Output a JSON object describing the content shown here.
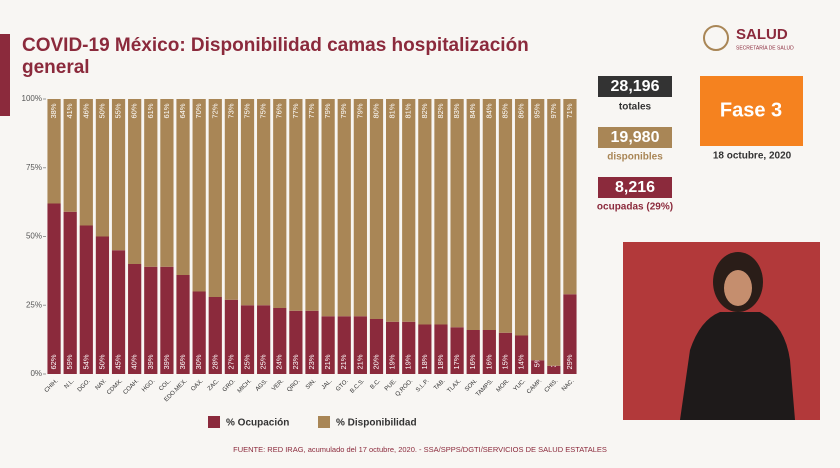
{
  "header": {
    "logo": "SALUD",
    "logo_sub": "SECRETARÍA DE SALUD"
  },
  "chart_data": {
    "type": "stacked_bar",
    "title": "COVID-19 México: Disponibilidad camas hospitalización general",
    "categories": [
      "CHIH.",
      "N.L.",
      "DGO.",
      "NAY.",
      "CDMX.",
      "COAH.",
      "HGO.",
      "COL.",
      "EDO.MEX.",
      "OAX.",
      "ZAC.",
      "GRO.",
      "MICH.",
      "AGS.",
      "VER.",
      "QRO.",
      "SIN.",
      "JAL.",
      "GTO.",
      "B.C.S.",
      "B.C.",
      "PUE.",
      "Q.ROO.",
      "S.L.P.",
      "TAB.",
      "TLAX.",
      "SON.",
      "TAMPS.",
      "MOR.",
      "YUC.",
      "CAMP.",
      "CHIS.",
      "NAC."
    ],
    "series": [
      {
        "name": "% Ocupación",
        "color": "#8b2a3c",
        "values": [
          62,
          59,
          54,
          50,
          45,
          40,
          39,
          39,
          36,
          30,
          28,
          27,
          25,
          25,
          24,
          23,
          23,
          21,
          21,
          21,
          20,
          19,
          19,
          18,
          18,
          17,
          16,
          16,
          15,
          14,
          5,
          3,
          29
        ],
        "value_labels": [
          "62%",
          "59%",
          "54%",
          "50%",
          "45%",
          "40%",
          "39%",
          "39%",
          "36%",
          "30%",
          "28%",
          "27%",
          "25%",
          "25%",
          "24%",
          "23%",
          "23%",
          "21%",
          "21%",
          "21%",
          "20%",
          "19%",
          "19%",
          "18%",
          "18%",
          "17%",
          "16%",
          "16%",
          "15%",
          "14%",
          "5%",
          "3%",
          "29%"
        ]
      },
      {
        "name": "% Disponibilidad",
        "color": "#a98656",
        "values": [
          38,
          41,
          46,
          50,
          55,
          60,
          61,
          61,
          64,
          70,
          72,
          73,
          75,
          75,
          76,
          77,
          77,
          79,
          79,
          79,
          80,
          81,
          81,
          82,
          82,
          83,
          84,
          84,
          85,
          86,
          95,
          97,
          71
        ],
        "value_labels": [
          "38%",
          "41%",
          "46%",
          "50%",
          "55%",
          "60%",
          "61%",
          "61%",
          "64%",
          "70%",
          "72%",
          "73%",
          "75%",
          "75%",
          "76%",
          "77%",
          "77%",
          "79%",
          "79%",
          "79%",
          "80%",
          "81%",
          "81%",
          "82%",
          "82%",
          "83%",
          "84%",
          "84%",
          "85%",
          "86%",
          "95%",
          "97%",
          "71%"
        ]
      }
    ],
    "ylim": [
      0,
      100
    ],
    "yticks": [
      {
        "value": 0,
        "label": "0%"
      },
      {
        "value": 25,
        "label": "25%"
      },
      {
        "value": 50,
        "label": "50%"
      },
      {
        "value": 75,
        "label": "75%"
      },
      {
        "value": 100,
        "label": "100%"
      }
    ],
    "legend": "bottom"
  },
  "stats": {
    "total": "28,196",
    "total_label": "totales",
    "available": "19,980",
    "available_label": "disponibles",
    "occupied": "8,216",
    "occupied_label": "ocupadas (29%)",
    "phase": "Fase 3",
    "date": "18 octubre, 2020"
  },
  "footer": "FUENTE: RED IRAG, acumulado del 17 octubre, 2020. - SSA/SPPS/DGTI/SERVICIOS DE SALUD ESTATALES"
}
